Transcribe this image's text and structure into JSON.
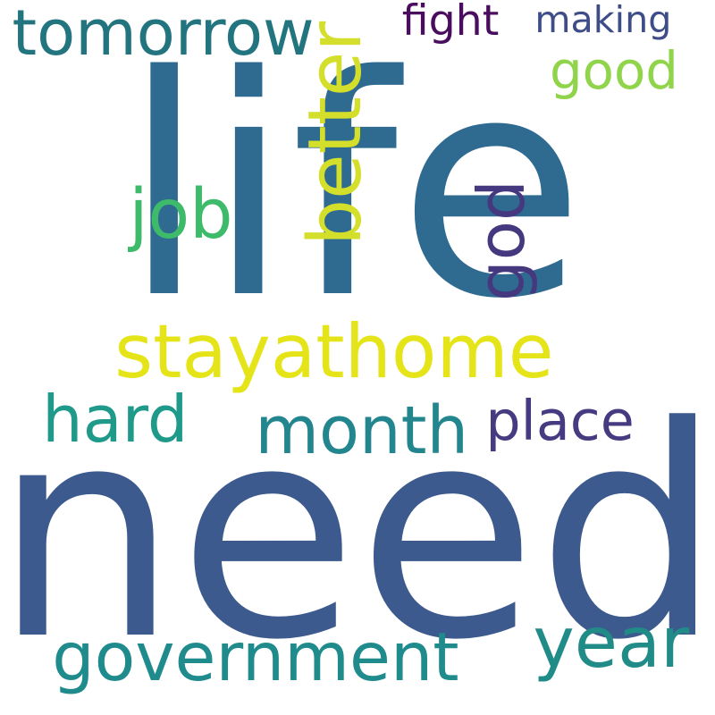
{
  "words": [
    {
      "key": "life",
      "text": "life",
      "color": "#2f6a91",
      "rotated": false
    },
    {
      "key": "need",
      "text": "need",
      "color": "#3d5a8e",
      "rotated": false
    },
    {
      "key": "stayathome",
      "text": "stayathome",
      "color": "#e5e419",
      "rotated": false
    },
    {
      "key": "tomorrow",
      "text": "tomorrow",
      "color": "#22757f",
      "rotated": false
    },
    {
      "key": "fight",
      "text": "fight",
      "color": "#4a0c5f",
      "rotated": false
    },
    {
      "key": "making",
      "text": "making",
      "color": "#3e4c88",
      "rotated": false
    },
    {
      "key": "good",
      "text": "good",
      "color": "#8fd44a",
      "rotated": false
    },
    {
      "key": "better",
      "text": "better",
      "color": "#d3df2a",
      "rotated": true
    },
    {
      "key": "job",
      "text": "job",
      "color": "#3dbb6b",
      "rotated": false
    },
    {
      "key": "god",
      "text": "god",
      "color": "#45387f",
      "rotated": true
    },
    {
      "key": "hard",
      "text": "hard",
      "color": "#1f9a8a",
      "rotated": false
    },
    {
      "key": "month",
      "text": "month",
      "color": "#23858e",
      "rotated": false
    },
    {
      "key": "place",
      "text": "place",
      "color": "#463a81",
      "rotated": false
    },
    {
      "key": "government",
      "text": "government",
      "color": "#208b8c",
      "rotated": false
    },
    {
      "key": "year",
      "text": "year",
      "color": "#218b88",
      "rotated": false
    }
  ]
}
